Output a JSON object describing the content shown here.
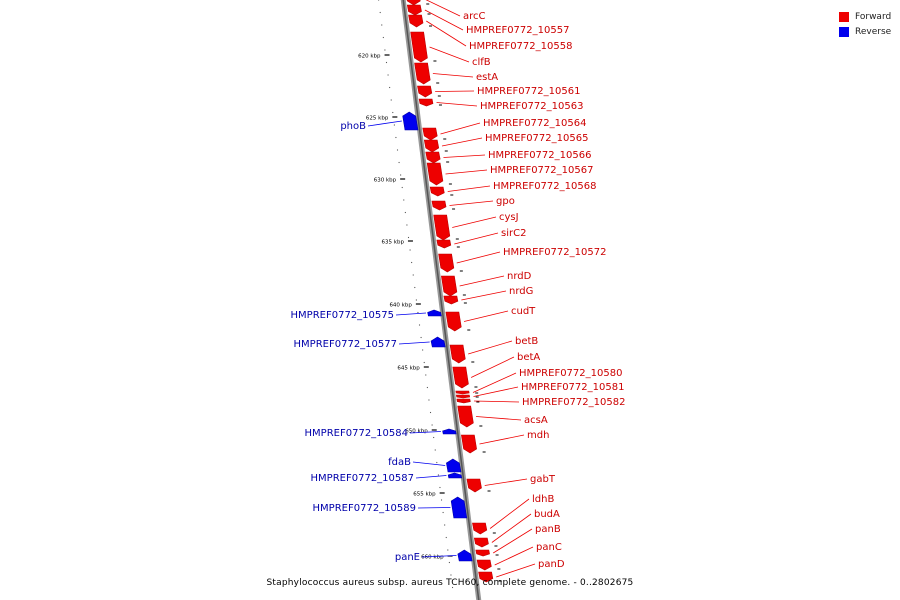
{
  "legend": {
    "forward_label": "Forward",
    "reverse_label": "Reverse",
    "forward_color": "#ee0000",
    "reverse_color": "#0000ee"
  },
  "caption": "Staphylococcus aureus subsp. aureus TCH60, complete genome. - 0..2802675",
  "ticks": [
    "620 kbp",
    "625 kbp",
    "630 kbp",
    "635 kbp",
    "640 kbp",
    "645 kbp",
    "650 kbp",
    "655 kbp",
    "660 kbp"
  ],
  "forward_genes": [
    "arcC",
    "HMPREF0772_10557",
    "HMPREF0772_10558",
    "clfB",
    "estA",
    "HMPREF0772_10561",
    "HMPREF0772_10563",
    "HMPREF0772_10564",
    "HMPREF0772_10565",
    "HMPREF0772_10566",
    "HMPREF0772_10567",
    "HMPREF0772_10568",
    "gpo",
    "cysJ",
    "sirC2",
    "HMPREF0772_10572",
    "nrdD",
    "nrdG",
    "cudT",
    "betB",
    "betA",
    "HMPREF0772_10580",
    "HMPREF0772_10581",
    "HMPREF0772_10582",
    "acsA",
    "mdh",
    "gabT",
    "ldhB",
    "budA",
    "panB",
    "panC",
    "panD"
  ],
  "reverse_genes": [
    "phoB",
    "HMPREF0772_10575",
    "HMPREF0772_10577",
    "HMPREF0772_10584",
    "fdaB",
    "HMPREF0772_10587",
    "HMPREF0772_10589",
    "panE"
  ]
}
